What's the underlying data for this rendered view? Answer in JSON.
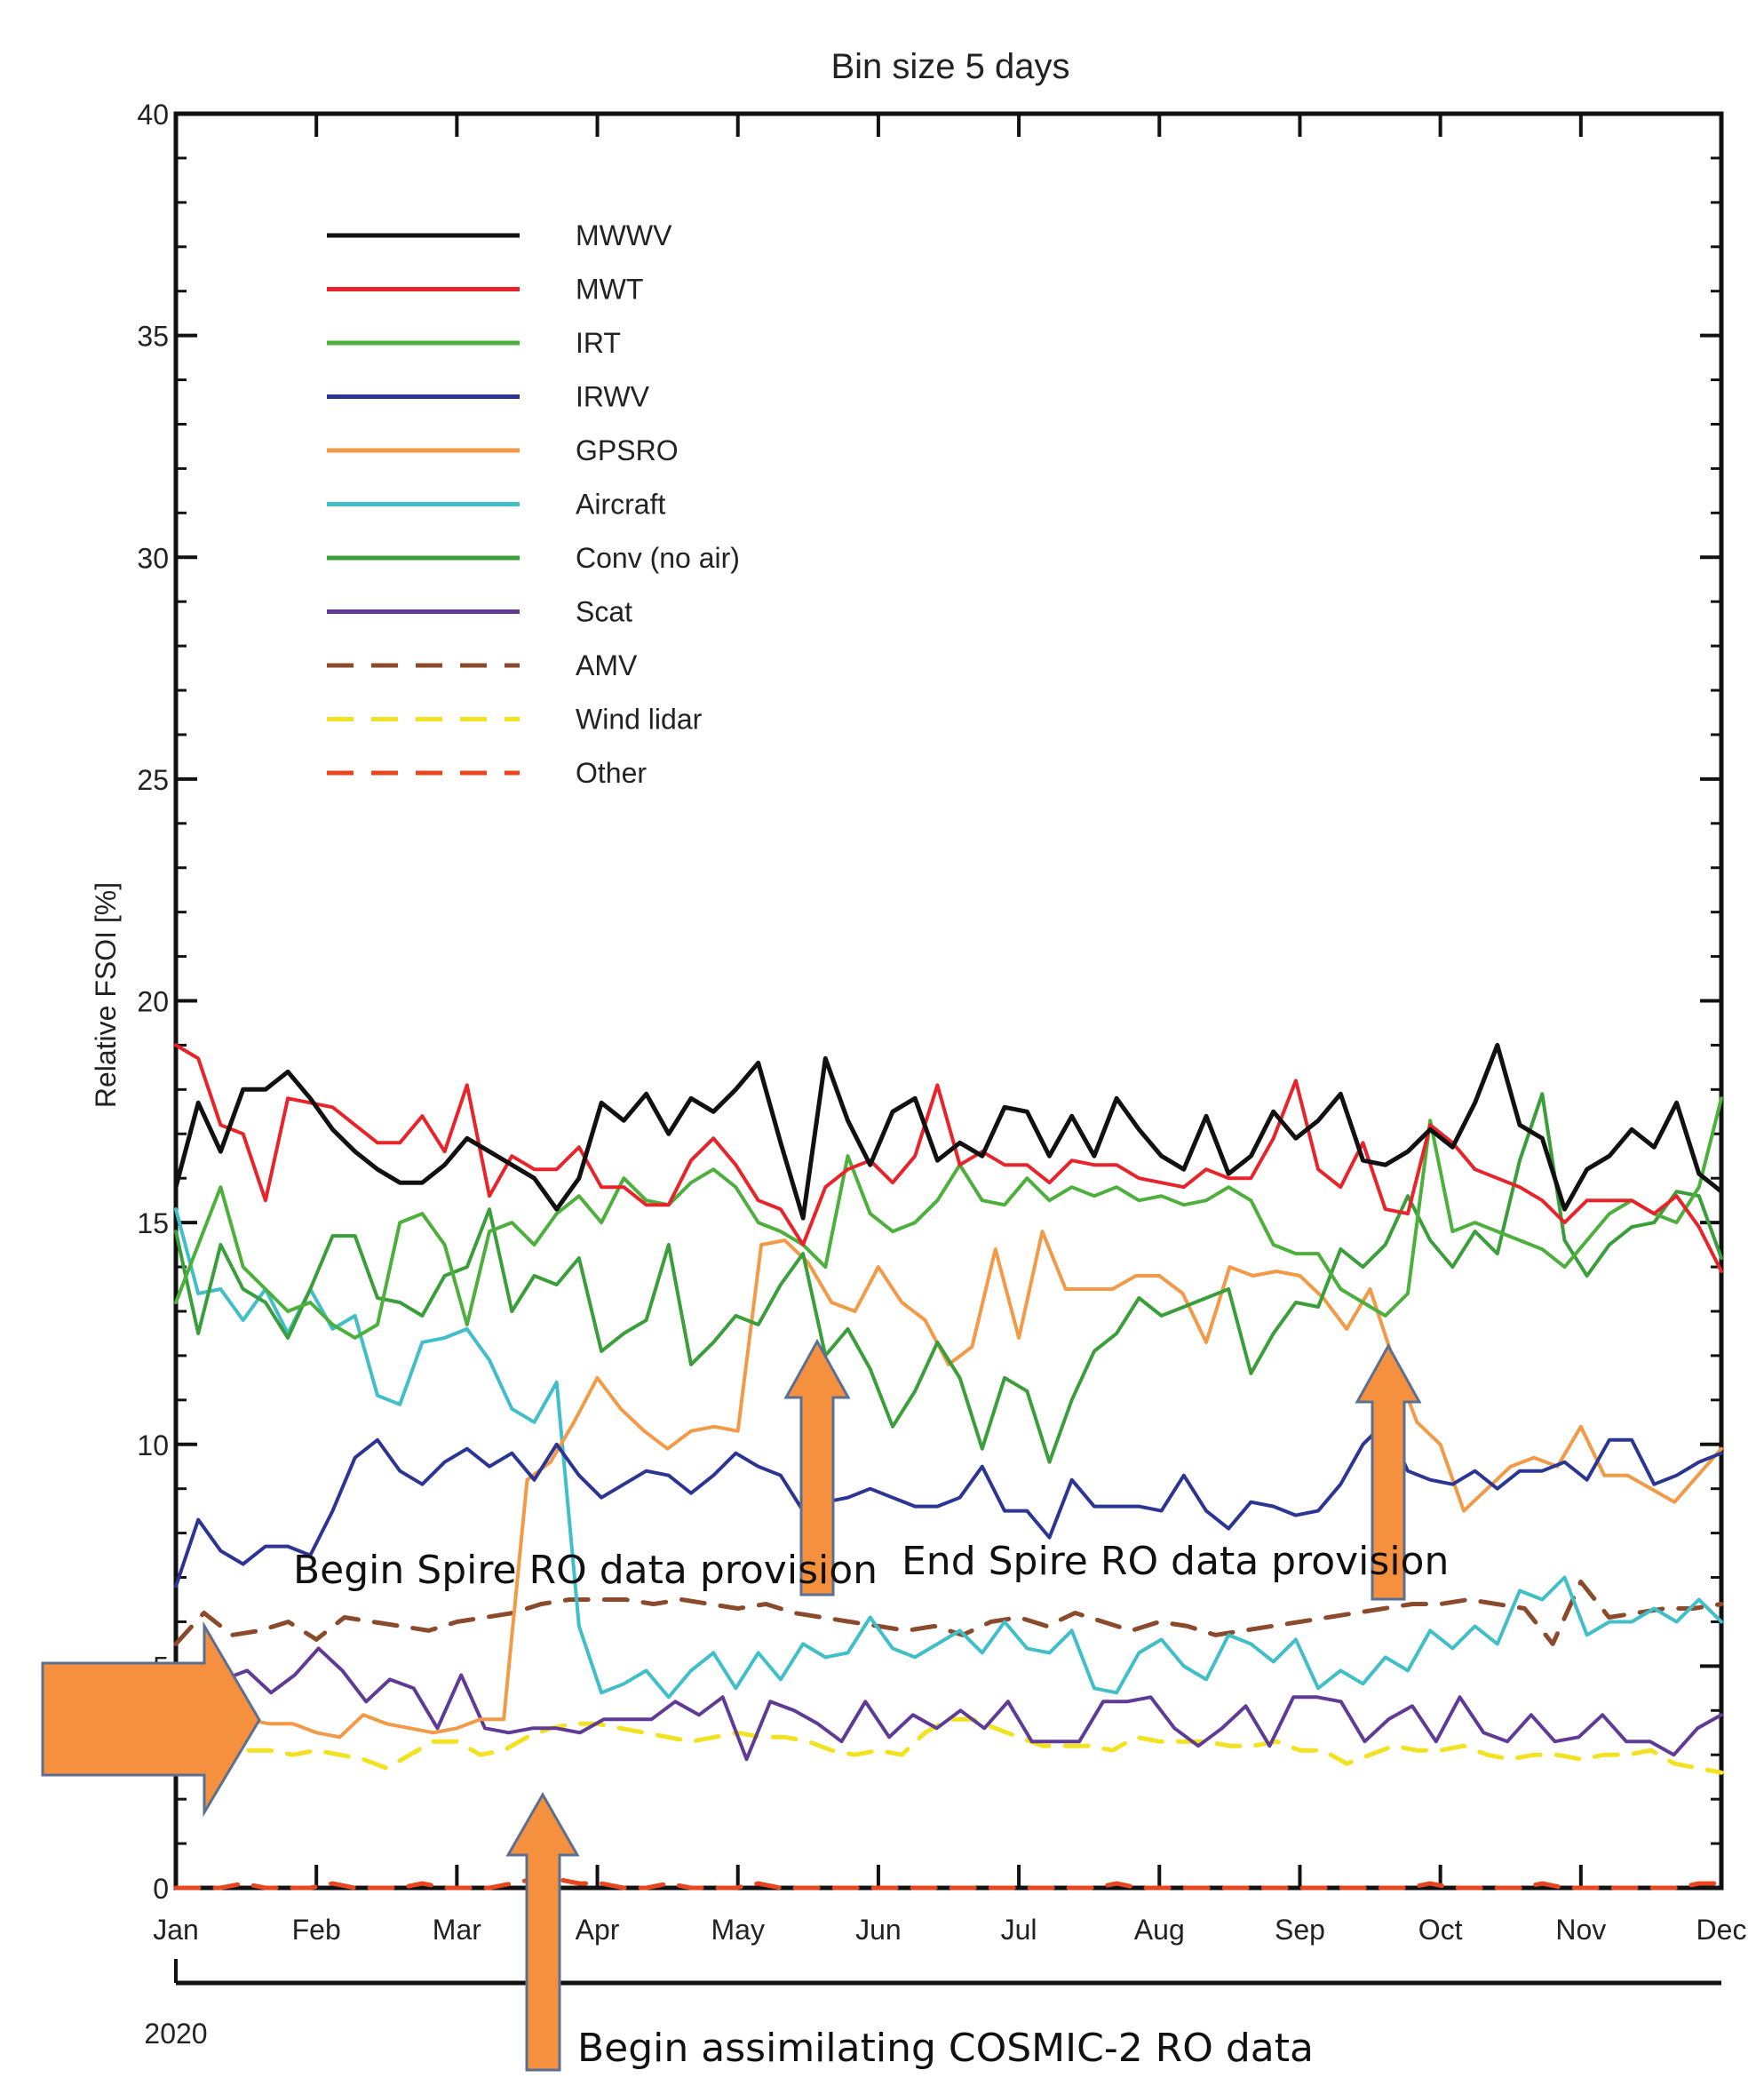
{
  "chart_data": {
    "type": "line",
    "title": "Bin size 5 days",
    "ylabel": "Relative FSOI [%]",
    "xlabel": "",
    "year_label": "2020",
    "ylim": [
      0,
      40
    ],
    "yticks": [
      0,
      5,
      10,
      15,
      20,
      25,
      30,
      35,
      40
    ],
    "x_tick_labels": [
      "Jan",
      "Feb",
      "Mar",
      "Apr",
      "May",
      "Jun",
      "Jul",
      "Aug",
      "Sep",
      "Oct",
      "Nov",
      "Dec"
    ],
    "legend_placement": "top-left",
    "grid": false,
    "series": [
      {
        "name": "MWWV",
        "color": "#111111",
        "style": "solid",
        "values": [
          15.8,
          17.7,
          16.6,
          18.0,
          18.0,
          18.4,
          17.8,
          17.1,
          16.6,
          16.2,
          15.9,
          15.9,
          16.3,
          16.9,
          16.6,
          16.3,
          16.0,
          15.3,
          16.0,
          17.7,
          17.3,
          17.9,
          17.0,
          17.8,
          17.5,
          18.0,
          18.6,
          16.8,
          15.1,
          18.7,
          17.3,
          16.3,
          17.5,
          17.8,
          16.4,
          16.8,
          16.5,
          17.6,
          17.5,
          16.5,
          17.4,
          16.5,
          17.8,
          17.1,
          16.5,
          16.2,
          17.4,
          16.1,
          16.5,
          17.5,
          16.9,
          17.3,
          17.9,
          16.4,
          16.3,
          16.6,
          17.1,
          16.7,
          17.7,
          19.0,
          17.2,
          16.9,
          15.3,
          16.2,
          16.5,
          17.1,
          16.7,
          17.7,
          16.1,
          15.7
        ]
      },
      {
        "name": "MWT",
        "color": "#e8242a",
        "style": "solid",
        "values": [
          19.0,
          18.7,
          17.2,
          17.0,
          15.5,
          17.8,
          17.7,
          17.6,
          17.2,
          16.8,
          16.8,
          17.4,
          16.6,
          18.1,
          15.6,
          16.5,
          16.2,
          16.2,
          16.7,
          15.8,
          15.8,
          15.4,
          15.4,
          16.4,
          16.9,
          16.3,
          15.5,
          15.3,
          14.5,
          15.8,
          16.2,
          16.4,
          15.9,
          16.5,
          18.1,
          16.3,
          16.6,
          16.3,
          16.3,
          15.9,
          16.4,
          16.3,
          16.3,
          16.0,
          15.9,
          15.8,
          16.2,
          16.0,
          16.0,
          16.9,
          18.2,
          16.2,
          15.8,
          16.8,
          15.3,
          15.2,
          17.2,
          16.8,
          16.2,
          16.0,
          15.8,
          15.5,
          15.0,
          15.5,
          15.5,
          15.5,
          15.2,
          15.6,
          14.9,
          13.9
        ]
      },
      {
        "name": "IRT",
        "color": "#4daf3c",
        "style": "solid",
        "values": [
          13.2,
          14.5,
          15.8,
          14.0,
          13.5,
          13.0,
          13.2,
          12.7,
          12.4,
          12.7,
          15.0,
          15.2,
          14.5,
          12.7,
          14.8,
          15.0,
          14.5,
          15.2,
          15.6,
          15.0,
          16.0,
          15.5,
          15.4,
          15.9,
          16.2,
          15.8,
          15.0,
          14.8,
          14.5,
          14.0,
          16.5,
          15.2,
          14.8,
          15.0,
          15.5,
          16.3,
          15.5,
          15.4,
          16.0,
          15.5,
          15.8,
          15.6,
          15.8,
          15.5,
          15.6,
          15.4,
          15.5,
          15.8,
          15.5,
          14.5,
          14.3,
          14.3,
          13.5,
          13.2,
          12.9,
          13.4,
          17.3,
          14.8,
          15.0,
          14.8,
          14.6,
          14.4,
          14.0,
          14.6,
          15.2,
          15.5,
          15.2,
          15.0,
          15.8,
          17.8
        ]
      },
      {
        "name": "Conv (no air)",
        "color": "#3a9e3a",
        "style": "solid",
        "values": [
          14.8,
          12.5,
          14.5,
          13.5,
          13.2,
          12.4,
          13.5,
          14.7,
          14.7,
          13.3,
          13.2,
          12.9,
          13.8,
          14.0,
          15.3,
          13.0,
          13.8,
          13.6,
          14.2,
          12.1,
          12.5,
          12.8,
          14.5,
          11.8,
          12.3,
          12.9,
          12.7,
          13.6,
          14.3,
          12.0,
          12.6,
          11.7,
          10.4,
          11.2,
          12.3,
          11.5,
          9.9,
          11.5,
          11.2,
          9.6,
          11.0,
          12.1,
          12.5,
          13.3,
          12.9,
          13.1,
          13.3,
          13.5,
          11.6,
          12.5,
          13.2,
          13.1,
          14.4,
          14.0,
          14.5,
          15.6,
          14.6,
          14.0,
          14.8,
          14.3,
          16.4,
          17.9,
          14.6,
          13.8,
          14.5,
          14.9,
          15.0,
          15.7,
          15.6,
          14.2
        ]
      },
      {
        "name": "IRWV",
        "color": "#2c3593",
        "style": "solid",
        "values": [
          6.8,
          8.3,
          7.6,
          7.3,
          7.7,
          7.7,
          7.5,
          8.5,
          9.7,
          10.1,
          9.4,
          9.1,
          9.6,
          9.9,
          9.5,
          9.8,
          9.2,
          10.0,
          9.3,
          8.8,
          9.1,
          9.4,
          9.3,
          8.9,
          9.3,
          9.8,
          9.5,
          9.3,
          8.5,
          8.7,
          8.8,
          9.0,
          8.8,
          8.6,
          8.6,
          8.8,
          9.5,
          8.5,
          8.5,
          7.9,
          9.2,
          8.6,
          8.6,
          8.6,
          8.5,
          9.3,
          8.5,
          8.1,
          8.7,
          8.6,
          8.4,
          8.5,
          9.1,
          10.0,
          10.5,
          9.4,
          9.2,
          9.1,
          9.4,
          9.0,
          9.4,
          9.4,
          9.6,
          9.2,
          10.1,
          10.1,
          9.1,
          9.3,
          9.6,
          9.8
        ]
      },
      {
        "name": "GPSRO",
        "color": "#f29a47",
        "style": "solid",
        "values": [
          4.1,
          4.3,
          4.1,
          3.8,
          3.7,
          3.7,
          3.5,
          3.4,
          3.9,
          3.7,
          3.6,
          3.5,
          3.6,
          3.8,
          3.8,
          9.2,
          9.6,
          10.5,
          11.5,
          10.8,
          10.3,
          9.9,
          10.3,
          10.4,
          10.3,
          14.5,
          14.6,
          14.1,
          13.2,
          13.0,
          14.0,
          13.2,
          12.8,
          11.8,
          12.2,
          14.4,
          12.4,
          14.8,
          13.5,
          13.5,
          13.5,
          13.8,
          13.8,
          13.4,
          12.3,
          14.0,
          13.8,
          13.9,
          13.8,
          13.3,
          12.6,
          13.5,
          11.9,
          10.5,
          10.0,
          8.5,
          9.0,
          9.5,
          9.7,
          9.5,
          10.4,
          9.3,
          9.3,
          9.0,
          8.7,
          9.3,
          9.9
        ]
      },
      {
        "name": "Aircraft",
        "color": "#40bfc9",
        "style": "solid",
        "values": [
          15.3,
          13.4,
          13.5,
          12.8,
          13.5,
          12.5,
          13.5,
          12.6,
          12.9,
          11.1,
          10.9,
          12.3,
          12.4,
          12.6,
          11.9,
          10.8,
          10.5,
          11.4,
          5.9,
          4.4,
          4.6,
          4.9,
          4.3,
          4.9,
          5.3,
          4.5,
          5.3,
          4.7,
          5.5,
          5.2,
          5.3,
          6.1,
          5.4,
          5.2,
          5.5,
          5.8,
          5.3,
          6.0,
          5.4,
          5.3,
          5.8,
          4.5,
          4.4,
          5.3,
          5.6,
          5.0,
          4.7,
          5.7,
          5.5,
          5.1,
          5.6,
          4.5,
          4.9,
          4.6,
          5.2,
          4.9,
          5.8,
          5.4,
          5.9,
          5.5,
          6.7,
          6.5,
          7.0,
          5.7,
          6.0,
          6.0,
          6.3,
          6.0,
          6.5,
          6.0
        ]
      },
      {
        "name": "Scat",
        "color": "#5f3b96",
        "style": "solid",
        "values": [
          4.1,
          4.5,
          4.7,
          4.9,
          4.4,
          4.8,
          5.4,
          4.9,
          4.2,
          4.7,
          4.5,
          3.6,
          4.8,
          3.6,
          3.5,
          3.6,
          3.6,
          3.5,
          3.8,
          3.8,
          3.8,
          4.2,
          3.9,
          4.3,
          2.9,
          4.2,
          4.0,
          3.7,
          3.3,
          4.2,
          3.4,
          3.9,
          3.6,
          4.0,
          3.6,
          4.2,
          3.3,
          3.3,
          3.3,
          4.2,
          4.2,
          4.3,
          3.6,
          3.2,
          3.6,
          4.1,
          3.2,
          4.3,
          4.3,
          4.2,
          3.3,
          3.8,
          4.1,
          3.3,
          4.3,
          3.5,
          3.3,
          3.9,
          3.3,
          3.4,
          3.9,
          3.3,
          3.3,
          3.0,
          3.6,
          3.9
        ]
      },
      {
        "name": "AMV",
        "color": "#8b4a2b",
        "style": "dashed",
        "values": [
          5.5,
          6.2,
          5.7,
          5.8,
          6.0,
          5.6,
          6.1,
          6.0,
          5.9,
          5.8,
          6.0,
          6.1,
          6.2,
          6.4,
          6.5,
          6.5,
          6.5,
          6.4,
          6.5,
          6.4,
          6.3,
          6.4,
          6.2,
          6.1,
          6.0,
          5.9,
          5.8,
          5.9,
          5.7,
          6.0,
          6.1,
          5.9,
          6.2,
          6.0,
          5.8,
          6.0,
          5.9,
          5.7,
          5.8,
          5.9,
          6.0,
          6.1,
          6.2,
          6.3,
          6.4,
          6.4,
          6.5,
          6.4,
          6.3,
          5.5,
          6.9,
          6.1,
          6.2,
          6.3,
          6.3,
          6.4
        ]
      },
      {
        "name": "Wind lidar",
        "color": "#f2e222",
        "style": "dashed",
        "values": [
          3.5,
          3.6,
          3.3,
          3.1,
          3.1,
          3.0,
          3.1,
          3.0,
          2.9,
          2.7,
          3.0,
          3.3,
          3.3,
          3.0,
          3.1,
          3.4,
          3.6,
          3.7,
          3.7,
          3.6,
          3.5,
          3.4,
          3.3,
          3.4,
          3.5,
          3.4,
          3.4,
          3.3,
          3.1,
          3.0,
          3.1,
          3.0,
          3.5,
          3.8,
          3.8,
          3.6,
          3.4,
          3.2,
          3.2,
          3.2,
          3.1,
          3.4,
          3.3,
          3.3,
          3.3,
          3.2,
          3.2,
          3.3,
          3.1,
          3.1,
          2.8,
          3.0,
          3.2,
          3.1,
          3.1,
          3.2,
          3.0,
          2.9,
          3.0,
          3.0,
          2.9,
          3.0,
          3.0,
          3.1,
          2.8,
          2.7,
          2.6
        ]
      },
      {
        "name": "Other",
        "color": "#e8461e",
        "style": "dashed",
        "values": [
          0.0,
          0.0,
          0.0,
          0.1,
          0.0,
          0.0,
          0.0,
          0.1,
          0.0,
          0.0,
          0.0,
          0.1,
          0.0,
          0.0,
          0.0,
          0.1,
          0.2,
          0.2,
          0.1,
          0.1,
          0.0,
          0.0,
          0.1,
          0.0,
          0.0,
          0.0,
          0.1,
          0.0,
          0.0,
          0.0,
          0.0,
          0.0,
          0.0,
          0.0,
          0.0,
          0.0,
          0.0,
          0.0,
          0.0,
          0.0,
          0.0,
          0.0,
          0.1,
          0.0,
          0.0,
          0.0,
          0.0,
          0.0,
          0.0,
          0.0,
          0.0,
          0.0,
          0.0,
          0.0,
          0.0,
          0.0,
          0.1,
          0.0,
          0.0,
          0.0,
          0.0,
          0.1,
          0.0,
          0.0,
          0.0,
          0.0,
          0.0,
          0.0,
          0.1,
          0.1
        ]
      }
    ],
    "annotations": [
      {
        "text": "Begin Spire RO data provision",
        "arrow": "up",
        "arrow_color": "#f5913e"
      },
      {
        "text": "End Spire RO data provision",
        "arrow": "up",
        "arrow_color": "#f5913e"
      },
      {
        "text": "Begin assimilating COSMIC-2 RO data",
        "arrow": "up",
        "arrow_color": "#f5913e"
      },
      {
        "text": "",
        "arrow": "right",
        "arrow_color": "#f5913e"
      }
    ]
  }
}
